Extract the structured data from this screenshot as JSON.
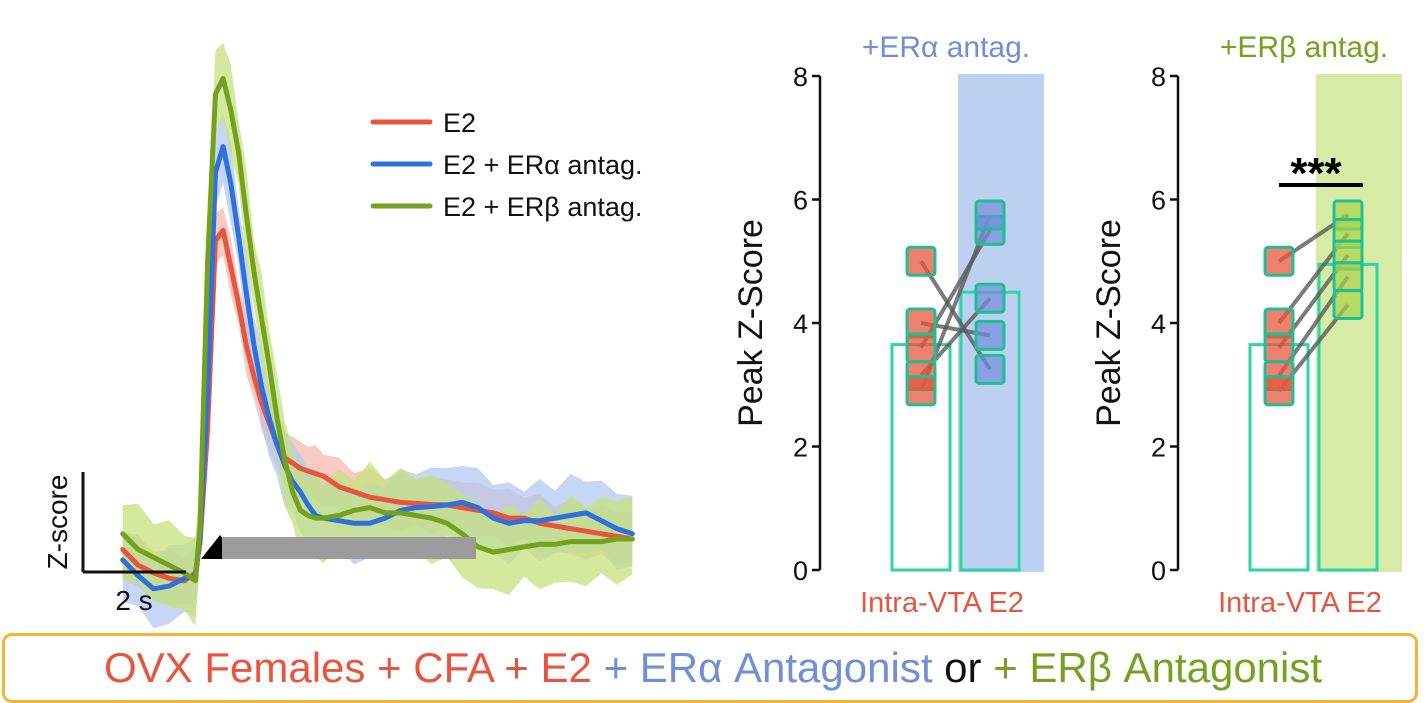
{
  "chart_data": [
    {
      "type": "line",
      "title": "",
      "xlabel": "2 s",
      "ylabel": "Z-score",
      "scale_bar": {
        "x_label": "2 s",
        "y_label": "Z-score"
      },
      "x": [
        -5,
        -4,
        -3,
        -2,
        -1,
        -0.3,
        0,
        0.5,
        1,
        1.5,
        2,
        2.5,
        3,
        3.5,
        4,
        4.5,
        5,
        5.5,
        6,
        6.5,
        7,
        7.5,
        8,
        9,
        10,
        11,
        12,
        13,
        14,
        15,
        16,
        17,
        18,
        19,
        20,
        21,
        22,
        23,
        24,
        25,
        26,
        27,
        28
      ],
      "series": [
        {
          "name": "E2",
          "color": "#e8553e",
          "values": [
            0.0,
            -0.3,
            -0.45,
            -0.55,
            -0.6,
            -0.45,
            0.1,
            2.3,
            5.9,
            6.1,
            5.4,
            4.7,
            3.9,
            3.3,
            2.8,
            2.4,
            2.0,
            1.75,
            1.65,
            1.55,
            1.5,
            1.45,
            1.4,
            1.2,
            1.1,
            1.0,
            0.95,
            0.9,
            0.88,
            0.86,
            0.85,
            0.8,
            0.75,
            0.7,
            0.6,
            0.6,
            0.5,
            0.45,
            0.4,
            0.35,
            0.3,
            0.25,
            0.2
          ]
        },
        {
          "name": "E2 + ERα antag.",
          "color": "#2f6fde",
          "values": [
            -0.2,
            -0.5,
            -0.75,
            -0.7,
            -0.55,
            -0.5,
            0.2,
            3.0,
            7.2,
            7.7,
            7.0,
            6.0,
            4.9,
            3.9,
            3.1,
            2.5,
            2.0,
            1.6,
            1.3,
            1.1,
            0.85,
            0.65,
            0.6,
            0.55,
            0.5,
            0.5,
            0.6,
            0.75,
            0.8,
            0.82,
            0.85,
            0.9,
            0.8,
            0.6,
            0.5,
            0.55,
            0.55,
            0.6,
            0.65,
            0.7,
            0.55,
            0.4,
            0.3
          ]
        },
        {
          "name": "E2 + ERβ antag.",
          "color": "#74a21f",
          "values": [
            0.3,
            0.0,
            -0.15,
            -0.3,
            -0.45,
            -0.6,
            0.4,
            5.5,
            8.7,
            9.0,
            8.4,
            7.6,
            6.4,
            5.3,
            4.4,
            3.5,
            2.5,
            1.7,
            1.1,
            0.75,
            0.65,
            0.6,
            0.6,
            0.65,
            0.75,
            0.8,
            0.7,
            0.7,
            0.65,
            0.6,
            0.5,
            0.3,
            0.05,
            -0.05,
            0.0,
            0.05,
            0.1,
            0.1,
            0.15,
            0.15,
            0.15,
            0.2,
            0.2
          ]
        }
      ],
      "ylim": [
        -1.5,
        10.5
      ],
      "xlim": [
        -5.5,
        28.5
      ],
      "legend": {
        "position": "top-right"
      }
    },
    {
      "type": "bar",
      "title": "+ERα antag.",
      "ylabel": "Peak Z-Score",
      "xlabel": "Intra-VTA E2",
      "ylim": [
        0,
        8
      ],
      "yticks": [
        0,
        2,
        4,
        6,
        8
      ],
      "categories": [
        "E2",
        "E2 + ERα antag."
      ],
      "values": [
        3.65,
        4.5
      ],
      "pairs": [
        [
          5.0,
          3.25
        ],
        [
          4.0,
          3.8
        ],
        [
          3.6,
          5.5
        ],
        [
          3.15,
          4.4
        ],
        [
          2.9,
          5.75
        ]
      ],
      "significance": ""
    },
    {
      "type": "bar",
      "title": "+ERβ antag.",
      "ylabel": "Peak Z-Score",
      "xlabel": "Intra-VTA E2",
      "ylim": [
        0,
        8
      ],
      "yticks": [
        0,
        2,
        4,
        6,
        8
      ],
      "categories": [
        "E2",
        "E2 + ERβ antag."
      ],
      "values": [
        3.65,
        4.95
      ],
      "pairs": [
        [
          5.0,
          5.75
        ],
        [
          4.0,
          5.45
        ],
        [
          3.6,
          5.1
        ],
        [
          3.15,
          4.75
        ],
        [
          2.9,
          4.3
        ]
      ],
      "significance": "***"
    }
  ],
  "colors": {
    "e2": "#e8553e",
    "era": "#2f6fde",
    "erb": "#74a21f",
    "era_shade": "#bcd0f1",
    "erb_shade": "#d6eca6",
    "bar_outline": "#2ed3a6",
    "teal_marker": "#1fbf95",
    "stim_bar": "#9b9b9b",
    "footer_border": "#f2b632"
  },
  "footer": {
    "part1": "OVX Females + CFA + E2",
    "part2": " + ERα Antagonist",
    "part3": " or ",
    "part4": "+ ERβ Antagonist"
  }
}
